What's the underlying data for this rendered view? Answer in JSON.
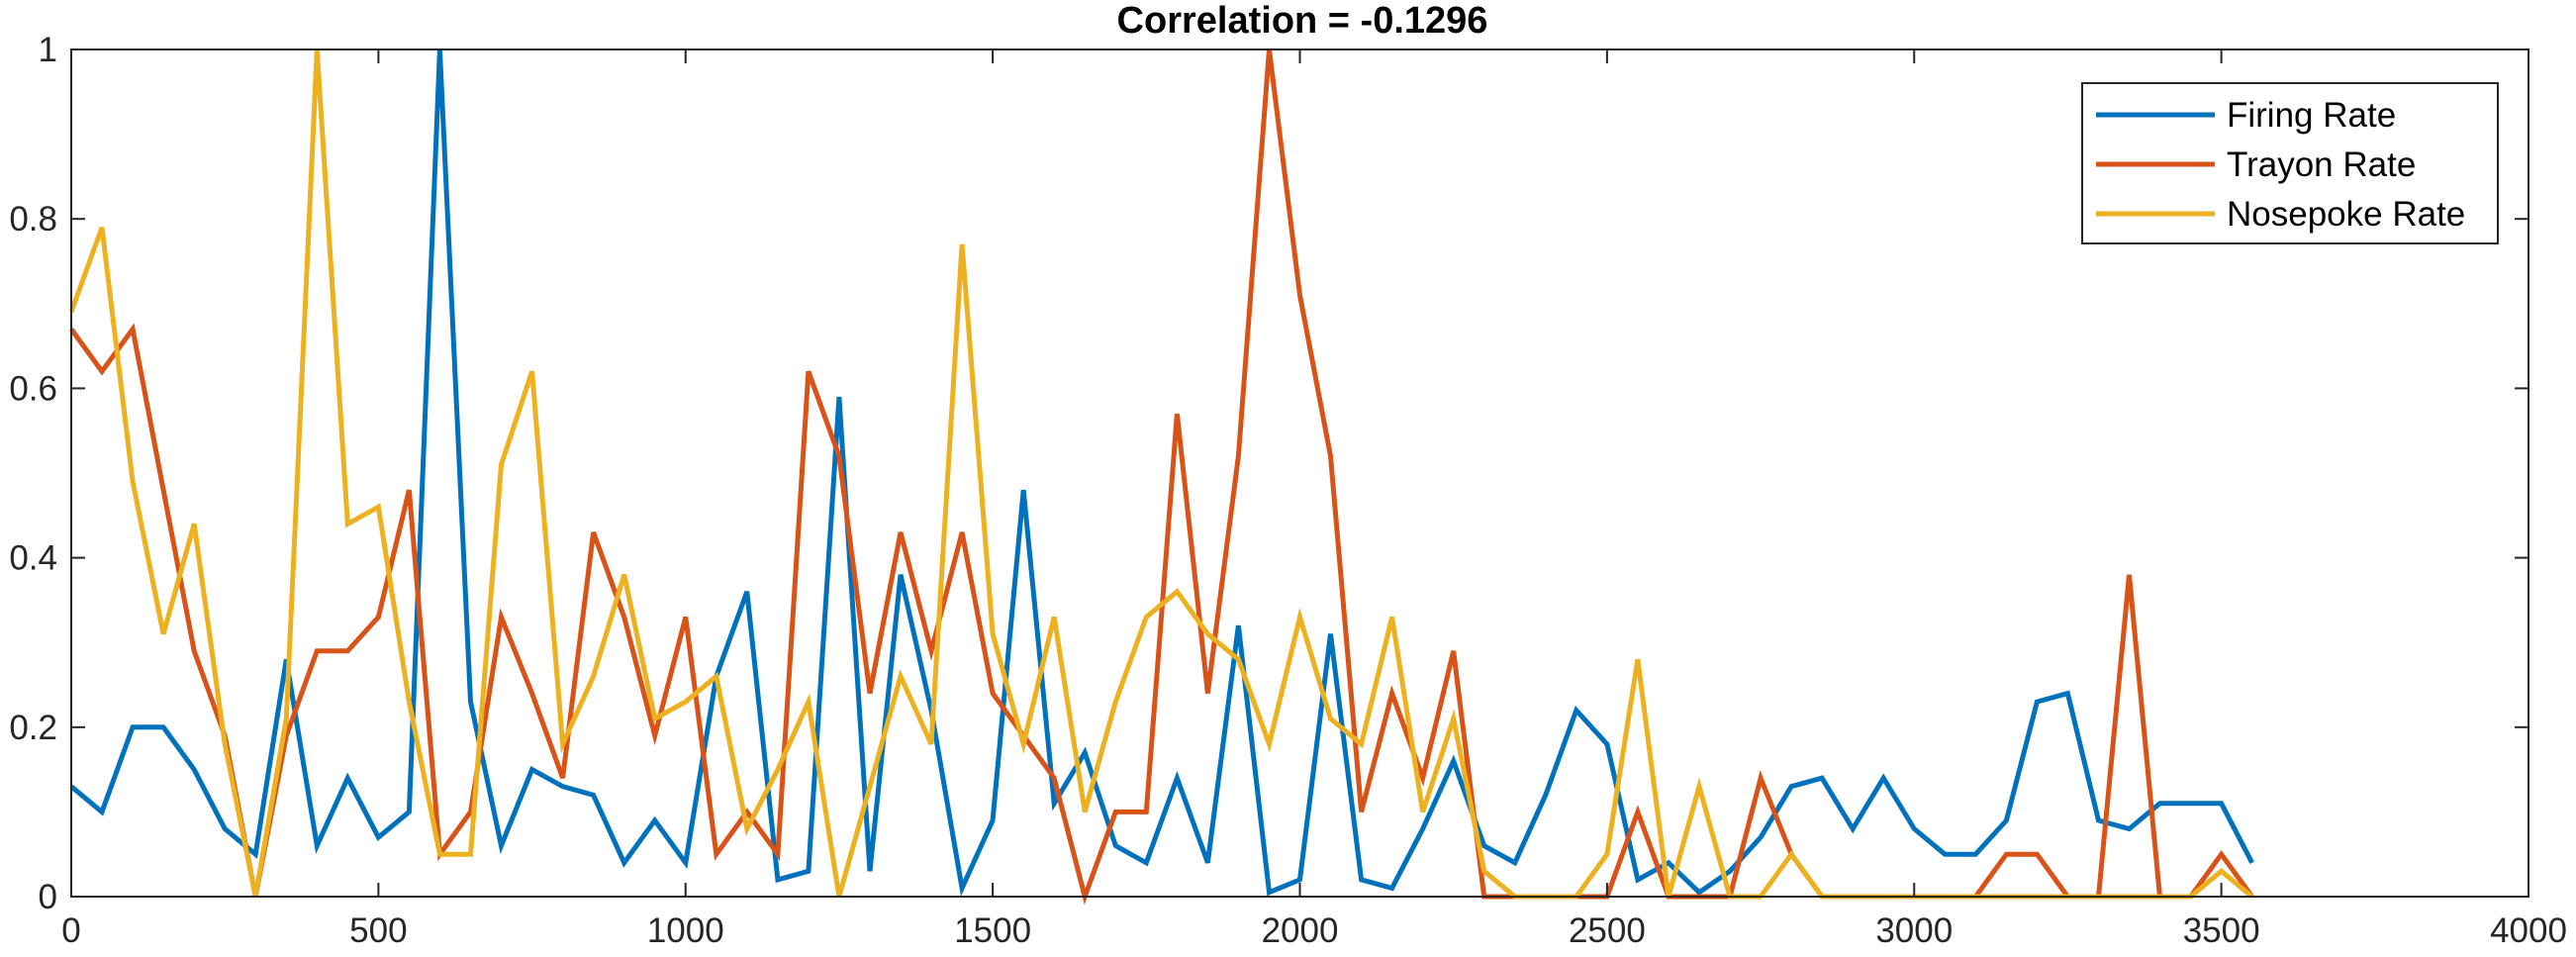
{
  "chart_data": {
    "type": "line",
    "title": "Correlation = -0.1296",
    "xlabel": "",
    "ylabel": "",
    "xlim": [
      0,
      4000
    ],
    "ylim": [
      0,
      1
    ],
    "xticks": [
      "0",
      "500",
      "1000",
      "1500",
      "2000",
      "2500",
      "3000",
      "3500",
      "4000"
    ],
    "yticks": [
      "0",
      "0.2",
      "0.4",
      "0.6",
      "0.8",
      "1"
    ],
    "grid": false,
    "legend_position": "top-right",
    "x": [
      0,
      50,
      100,
      150,
      200,
      250,
      300,
      350,
      400,
      450,
      500,
      550,
      600,
      650,
      700,
      750,
      800,
      850,
      900,
      950,
      1000,
      1050,
      1100,
      1150,
      1200,
      1250,
      1300,
      1350,
      1400,
      1450,
      1500,
      1550,
      1600,
      1650,
      1700,
      1750,
      1800,
      1850,
      1900,
      1950,
      2000,
      2050,
      2100,
      2150,
      2200,
      2250,
      2300,
      2350,
      2400,
      2450,
      2500,
      2550,
      2600,
      2650,
      2700,
      2750,
      2800,
      2850,
      2900,
      2950,
      3000,
      3050,
      3100,
      3150,
      3200,
      3250,
      3300,
      3350,
      3400,
      3450,
      3500,
      3550
    ],
    "series": [
      {
        "name": "Firing Rate",
        "color": "#0072BD",
        "values": [
          0.13,
          0.1,
          0.2,
          0.2,
          0.15,
          0.08,
          0.05,
          0.28,
          0.06,
          0.14,
          0.07,
          0.1,
          1.0,
          0.23,
          0.06,
          0.15,
          0.13,
          0.12,
          0.04,
          0.09,
          0.04,
          0.26,
          0.36,
          0.02,
          0.03,
          0.59,
          0.03,
          0.38,
          0.22,
          0.01,
          0.09,
          0.48,
          0.11,
          0.17,
          0.06,
          0.04,
          0.14,
          0.04,
          0.32,
          0.005,
          0.02,
          0.31,
          0.02,
          0.01,
          0.08,
          0.16,
          0.06,
          0.04,
          0.12,
          0.22,
          0.18,
          0.02,
          0.04,
          0.005,
          0.03,
          0.07,
          0.13,
          0.14,
          0.08,
          0.14,
          0.08,
          0.05,
          0.05,
          0.09,
          0.23,
          0.24,
          0.09,
          0.08,
          0.11,
          0.11,
          0.11,
          0.04
        ]
      },
      {
        "name": "Trayon Rate",
        "color": "#D95319",
        "values": [
          0.67,
          0.62,
          0.67,
          0.48,
          0.29,
          0.19,
          0.0,
          0.19,
          0.29,
          0.29,
          0.33,
          0.48,
          0.05,
          0.1,
          0.33,
          0.24,
          0.14,
          0.43,
          0.33,
          0.19,
          0.33,
          0.05,
          0.1,
          0.05,
          0.62,
          0.52,
          0.24,
          0.43,
          0.29,
          0.43,
          0.24,
          0.19,
          0.14,
          0.0,
          0.1,
          0.1,
          0.57,
          0.24,
          0.52,
          1.0,
          0.71,
          0.52,
          0.1,
          0.24,
          0.14,
          0.29,
          0.0,
          0.0,
          0.0,
          0.0,
          0.0,
          0.1,
          0.0,
          0.0,
          0.0,
          0.14,
          0.05,
          0.0,
          0.0,
          0.0,
          0.0,
          0.0,
          0.0,
          0.05,
          0.05,
          0.0,
          0.0,
          0.38,
          0.0,
          0.0,
          0.05,
          0.0
        ]
      },
      {
        "name": "Nosepoke Rate",
        "color": "#EDB120",
        "values": [
          0.69,
          0.79,
          0.49,
          0.31,
          0.44,
          0.18,
          0.0,
          0.21,
          1.0,
          0.44,
          0.46,
          0.23,
          0.05,
          0.05,
          0.51,
          0.62,
          0.18,
          0.26,
          0.38,
          0.21,
          0.23,
          0.26,
          0.08,
          0.15,
          0.23,
          0.0,
          0.13,
          0.26,
          0.18,
          0.77,
          0.31,
          0.18,
          0.33,
          0.1,
          0.23,
          0.33,
          0.36,
          0.31,
          0.28,
          0.18,
          0.33,
          0.21,
          0.18,
          0.33,
          0.1,
          0.21,
          0.03,
          0.0,
          0.0,
          0.0,
          0.05,
          0.28,
          0.0,
          0.13,
          0.0,
          0.0,
          0.05,
          0.0,
          0.0,
          0.0,
          0.0,
          0.0,
          0.0,
          0.0,
          0.0,
          0.0,
          0.0,
          0.0,
          0.0,
          0.0,
          0.03,
          0.0
        ]
      }
    ]
  }
}
